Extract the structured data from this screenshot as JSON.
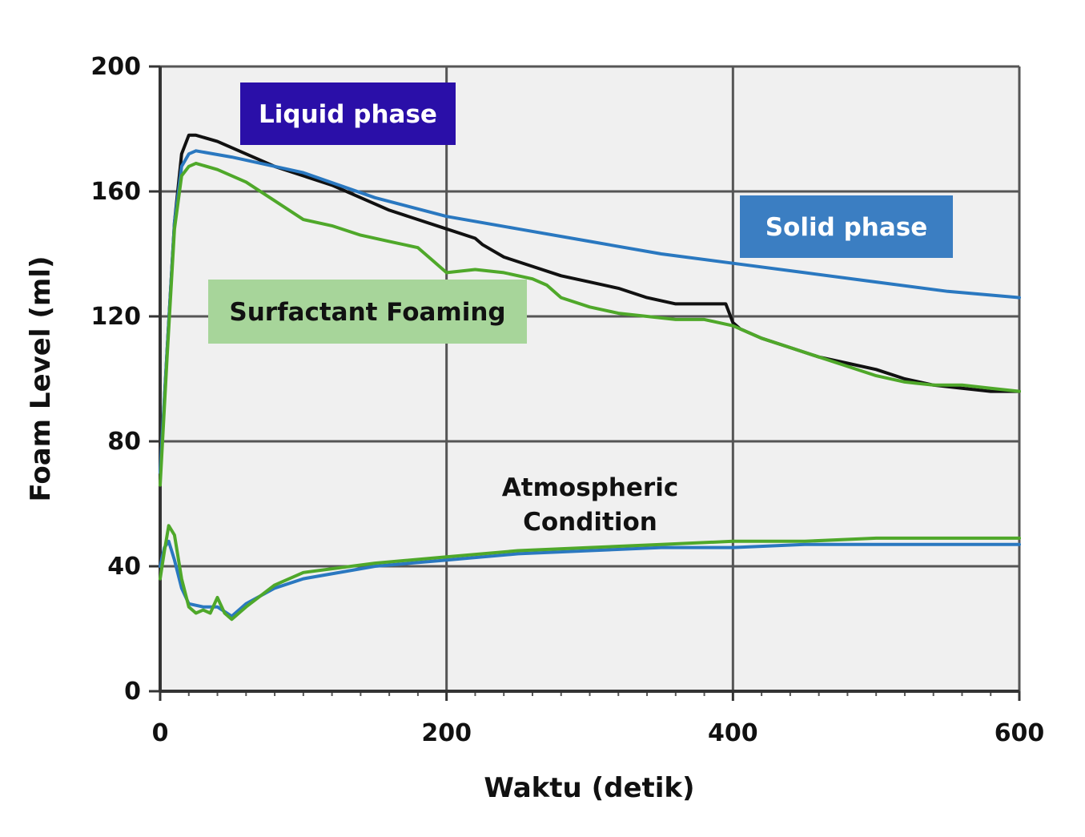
{
  "chart_data": {
    "type": "line",
    "xlabel": "Waktu (detik)",
    "ylabel": "Foam Level (ml)",
    "xlim": [
      0,
      600
    ],
    "ylim": [
      0,
      200
    ],
    "x_ticks": [
      "0",
      "200",
      "400",
      "600"
    ],
    "y_ticks": [
      "0",
      "40",
      "80",
      "120",
      "160",
      "200"
    ],
    "grid": true,
    "legend_boxes": [
      {
        "label": "Liquid phase",
        "color": "#2a0fa8",
        "text_color": "#ffffff"
      },
      {
        "label": "Solid phase",
        "color": "#3b7ec2",
        "text_color": "#ffffff"
      },
      {
        "label": "Surfactant Foaming",
        "color": "#a7d59a",
        "text_color": "#111111"
      }
    ],
    "annotations": [
      {
        "lines": [
          "Atmospheric",
          "Condition"
        ]
      }
    ],
    "series": [
      {
        "color": "#111111",
        "x": [
          0,
          5,
          10,
          15,
          20,
          25,
          40,
          60,
          80,
          100,
          120,
          140,
          160,
          180,
          200,
          220,
          225,
          240,
          260,
          280,
          300,
          320,
          340,
          360,
          380,
          395,
          400,
          405,
          420,
          440,
          460,
          480,
          500,
          520,
          540,
          560,
          580,
          600
        ],
        "y": [
          68,
          110,
          150,
          172,
          178,
          178,
          176,
          172,
          168,
          165,
          162,
          158,
          154,
          151,
          148,
          145,
          143,
          139,
          136,
          133,
          131,
          129,
          126,
          124,
          124,
          124,
          118,
          116,
          113,
          110,
          107,
          105,
          103,
          100,
          98,
          97,
          96,
          96
        ]
      },
      {
        "color": "#2a78c0",
        "x": [
          0,
          5,
          10,
          15,
          20,
          25,
          50,
          100,
          150,
          200,
          250,
          300,
          350,
          400,
          450,
          500,
          550,
          600
        ],
        "y": [
          70,
          110,
          150,
          168,
          172,
          173,
          171,
          166,
          158,
          152,
          148,
          144,
          140,
          137,
          134,
          131,
          128,
          126
        ]
      },
      {
        "color": "#4fa82a",
        "x": [
          0,
          5,
          10,
          15,
          20,
          25,
          40,
          60,
          80,
          100,
          120,
          140,
          160,
          180,
          190,
          200,
          220,
          240,
          260,
          270,
          280,
          300,
          320,
          340,
          360,
          380,
          400,
          420,
          440,
          460,
          480,
          500,
          520,
          540,
          560,
          580,
          600
        ],
        "y": [
          66,
          108,
          148,
          165,
          168,
          169,
          167,
          163,
          157,
          151,
          149,
          146,
          144,
          142,
          138,
          134,
          135,
          134,
          132,
          130,
          126,
          123,
          121,
          120,
          119,
          119,
          117,
          113,
          110,
          107,
          104,
          101,
          99,
          98,
          98,
          97,
          96
        ]
      },
      {
        "color": "#2a78c0",
        "x": [
          0,
          3,
          6,
          10,
          15,
          20,
          30,
          40,
          50,
          60,
          80,
          100,
          150,
          200,
          250,
          300,
          350,
          400,
          450,
          500,
          550,
          600
        ],
        "y": [
          40,
          46,
          48,
          42,
          33,
          28,
          27,
          27,
          24,
          28,
          33,
          36,
          40,
          42,
          44,
          45,
          46,
          46,
          47,
          47,
          47,
          47
        ]
      },
      {
        "color": "#4fa82a",
        "x": [
          0,
          3,
          6,
          10,
          15,
          20,
          25,
          30,
          35,
          40,
          45,
          50,
          60,
          80,
          100,
          150,
          200,
          250,
          300,
          350,
          400,
          450,
          500,
          550,
          600
        ],
        "y": [
          36,
          45,
          53,
          50,
          36,
          27,
          25,
          26,
          25,
          30,
          25,
          23,
          27,
          34,
          38,
          41,
          43,
          45,
          46,
          47,
          48,
          48,
          49,
          49,
          49
        ]
      }
    ]
  }
}
